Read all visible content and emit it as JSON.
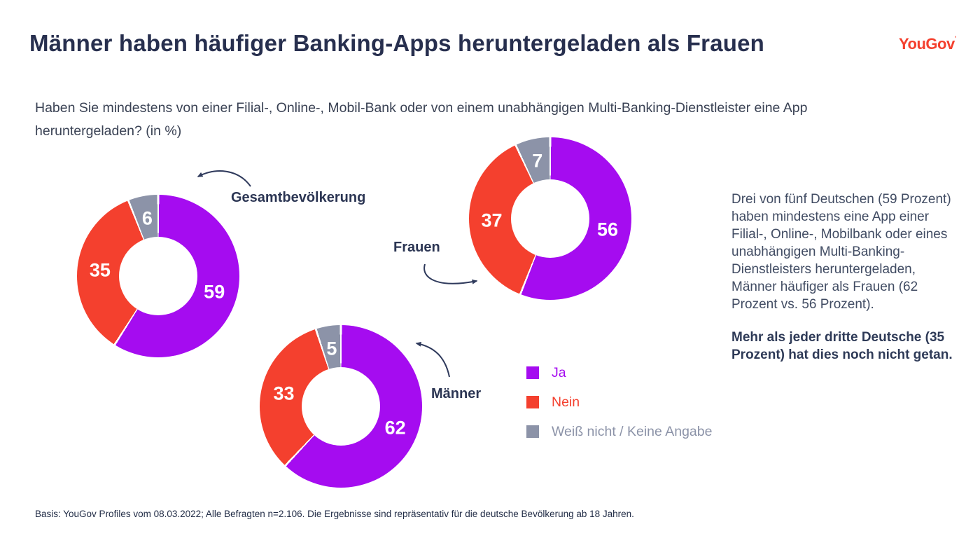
{
  "header": {
    "title": "Männer haben häufiger Banking-Apps heruntergeladen als Frauen",
    "logo_text": "YouGov",
    "logo_mark": "’",
    "question": "Haben Sie mindestens von einer Filial-, Online-, Mobil-Bank oder von einem unabhängigen Multi-Banking-Dienstleister eine App heruntergeladen? (in %)"
  },
  "colors": {
    "ja_purple": "#A50CF0",
    "nein_red": "#F4402E",
    "weiss_nicht_gray": "#8C93A8",
    "navy_text": "#2B3553",
    "logo_red": "#F4402E"
  },
  "legend": {
    "items": [
      {
        "label": "Ja",
        "color": "#A50CF0"
      },
      {
        "label": "Nein",
        "color": "#F4402E"
      },
      {
        "label": "Weiß nicht / Keine Angabe",
        "color": "#8C93A8"
      }
    ]
  },
  "insight": {
    "paragraph": "Drei von fünf Deutschen (59 Prozent) haben mindestens eine App einer Filial-, Online-, Mobilbank oder eines unabhängigen Multi-Banking-Dienstleisters heruntergeladen, Männer häufiger als Frauen (62 Prozent vs. 56 Prozent).",
    "bold_paragraph": "Mehr als jeder dritte Deutsche (35 Prozent) hat dies noch nicht getan."
  },
  "footer": {
    "basis": "Basis: YouGov Profiles vom 08.03.2022; Alle Befragten n=2.106. Die Ergebnisse sind repräsentativ für die deutsche Bevölkerung ab 18 Jahren."
  },
  "chart_data": {
    "type": "pie",
    "variant": "donut",
    "unit": "%",
    "title": "Männer haben häufiger Banking-Apps heruntergeladen als Frauen",
    "question": "Haben Sie mindestens von einer Filial-, Online-, Mobil-Bank oder von einem unabhängigen Multi-Banking-Dienstleister eine App heruntergeladen? (in %)",
    "legend_labels": [
      "Ja",
      "Nein",
      "Weiß nicht / Keine Angabe"
    ],
    "colors": [
      "#A50CF0",
      "#F4402E",
      "#8C93A8"
    ],
    "start_angle_deg": 0,
    "direction": "clockwise",
    "charts": [
      {
        "group": "Gesamtbevölkerung",
        "values": [
          59,
          35,
          6
        ]
      },
      {
        "group": "Frauen",
        "values": [
          56,
          37,
          7
        ]
      },
      {
        "group": "Männer",
        "values": [
          62,
          33,
          5
        ]
      }
    ]
  }
}
